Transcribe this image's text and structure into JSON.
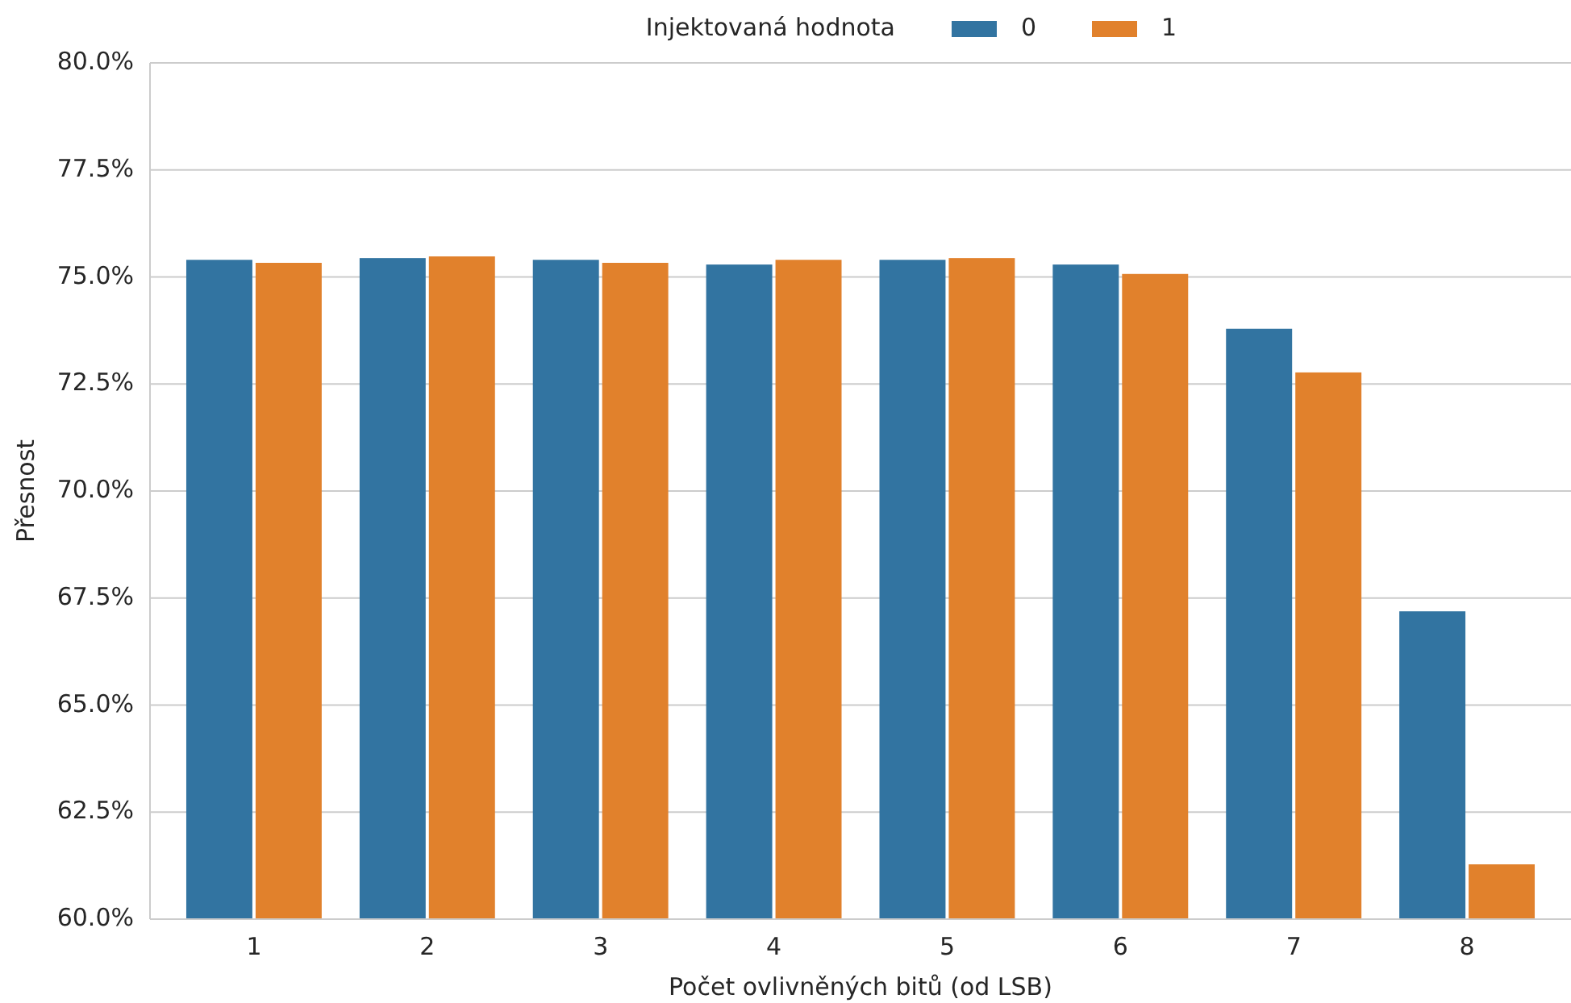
{
  "chart_data": {
    "type": "bar",
    "xlabel": "Počet ovlivněných bitů (od LSB)",
    "ylabel": "Přesnost",
    "legend_title": "Injektovaná hodnota",
    "legend": "top",
    "grid": "y",
    "categories": [
      "1",
      "2",
      "3",
      "4",
      "5",
      "6",
      "7",
      "8"
    ],
    "series": [
      {
        "name": "0",
        "color": "#3274a1",
        "values": [
          75.4,
          75.44,
          75.4,
          75.29,
          75.4,
          75.29,
          73.79,
          67.19
        ]
      },
      {
        "name": "1",
        "color": "#e1812c",
        "values": [
          75.33,
          75.48,
          75.33,
          75.4,
          75.44,
          75.07,
          72.77,
          61.28
        ]
      }
    ],
    "ylim": [
      60,
      80
    ],
    "yticks": [
      {
        "value": 60,
        "label": "60.0%"
      },
      {
        "value": 62.5,
        "label": "62.5%"
      },
      {
        "value": 65,
        "label": "65.0%"
      },
      {
        "value": 67.5,
        "label": "67.5%"
      },
      {
        "value": 70,
        "label": "70.0%"
      },
      {
        "value": 72.5,
        "label": "72.5%"
      },
      {
        "value": 75,
        "label": "75.0%"
      },
      {
        "value": 77.5,
        "label": "77.5%"
      },
      {
        "value": 80,
        "label": "80.0%"
      }
    ]
  }
}
